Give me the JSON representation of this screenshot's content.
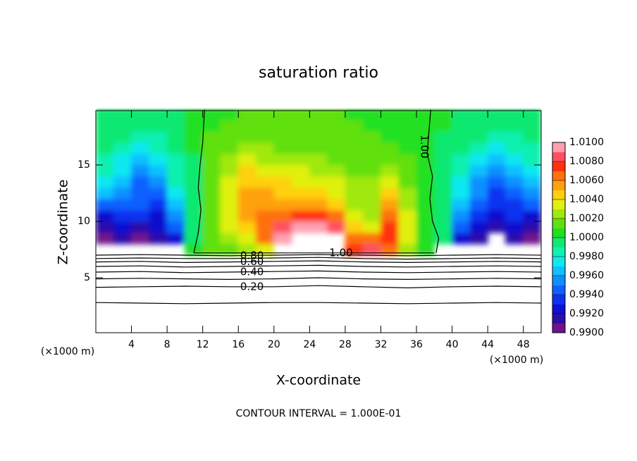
{
  "chart_data": {
    "type": "contour",
    "title": "saturation ratio",
    "xlabel": "X-coordinate",
    "ylabel": "Z-coordinate",
    "x_unit": "(×1000 m)",
    "y_unit": "(×1000 m)",
    "footer": "CONTOUR INTERVAL = 1.000E-01",
    "xlim": [
      0,
      50
    ],
    "ylim": [
      0,
      20
    ],
    "xticks": [
      4,
      8,
      12,
      16,
      20,
      24,
      28,
      32,
      36,
      40,
      44,
      48
    ],
    "yticks": [
      5,
      10,
      15
    ],
    "clim": [
      0.99,
      1.01
    ],
    "colorbar_ticks": [
      {
        "value": 0.99,
        "label": "0.9900"
      },
      {
        "value": 0.992,
        "label": "0.9920"
      },
      {
        "value": 0.994,
        "label": "0.9940"
      },
      {
        "value": 0.996,
        "label": "0.9960"
      },
      {
        "value": 0.998,
        "label": "0.9980"
      },
      {
        "value": 1.0,
        "label": "1.0000"
      },
      {
        "value": 1.002,
        "label": "1.0020"
      },
      {
        "value": 1.004,
        "label": "1.0040"
      },
      {
        "value": 1.006,
        "label": "1.0060"
      },
      {
        "value": 1.008,
        "label": "1.0080"
      },
      {
        "value": 1.01,
        "label": "1.0100"
      }
    ],
    "colors": [
      "#70128c",
      "#2a0fa8",
      "#1010d0",
      "#1030f0",
      "#1060ff",
      "#1090ff",
      "#10c0ff",
      "#10e8f0",
      "#10f0b0",
      "#10e870",
      "#20e020",
      "#60e010",
      "#a0e810",
      "#e0f010",
      "#ffd010",
      "#ffa010",
      "#ff7010",
      "#ff3010",
      "#ff5060",
      "#ffa0b0"
    ],
    "x": [
      1,
      3,
      5,
      7,
      9,
      11,
      13,
      15,
      17,
      19,
      21,
      23,
      25,
      27,
      29,
      31,
      33,
      35,
      37,
      39,
      41,
      43,
      45,
      47,
      49
    ],
    "y": [
      7.5,
      8.5,
      9.5,
      10.5,
      11.5,
      12.5,
      13.5,
      14.5,
      15.5,
      16.5,
      17.5,
      18.5,
      19.5
    ],
    "z": [
      [
        null,
        null,
        null,
        null,
        null,
        1.0005,
        1.0015,
        1.0015,
        1.0025,
        1.0035,
        null,
        null,
        null,
        null,
        1.0075,
        1.0085,
        1.0065,
        1.0025,
        1.0005,
        null,
        null,
        null,
        null,
        null,
        null
      ],
      [
        0.9905,
        0.9915,
        0.9905,
        0.9915,
        0.9925,
        0.9995,
        1.0015,
        1.0025,
        1.0035,
        1.0065,
        1.0095,
        null,
        null,
        null,
        1.0065,
        1.0065,
        1.0075,
        1.0035,
        1.0005,
        0.9995,
        0.9925,
        0.9915,
        null,
        0.9915,
        0.9905
      ],
      [
        0.9915,
        0.9925,
        0.9915,
        0.9925,
        0.9945,
        0.9995,
        1.0015,
        1.0035,
        1.0045,
        1.0065,
        1.0085,
        1.0095,
        1.0095,
        1.0085,
        1.0045,
        1.0035,
        1.0075,
        1.0035,
        1.0005,
        0.9995,
        0.9945,
        0.9925,
        0.9915,
        0.9925,
        0.9915
      ],
      [
        0.9925,
        0.9935,
        0.9935,
        0.9925,
        0.9955,
        0.9995,
        1.0015,
        1.0035,
        1.0055,
        1.0065,
        1.0065,
        1.0075,
        1.0075,
        1.0065,
        1.0035,
        1.0025,
        1.0065,
        1.0035,
        1.0005,
        0.9995,
        0.9955,
        0.9935,
        0.9925,
        0.9935,
        0.9925
      ],
      [
        0.9945,
        0.9945,
        0.9945,
        0.9935,
        0.9965,
        0.9995,
        1.0015,
        1.0035,
        1.0055,
        1.0055,
        1.0055,
        1.0055,
        1.0055,
        1.0045,
        1.0025,
        1.0025,
        1.0055,
        1.0025,
        1.0005,
        0.9995,
        0.9965,
        0.9945,
        0.9935,
        0.9935,
        0.9945
      ],
      [
        0.9965,
        0.9955,
        0.9945,
        0.9945,
        0.9975,
        0.9995,
        1.0015,
        1.0035,
        1.0055,
        1.0055,
        1.0045,
        1.0045,
        1.0045,
        1.0035,
        1.0025,
        1.0025,
        1.0045,
        1.0025,
        1.0005,
        0.9995,
        0.9975,
        0.9955,
        0.9935,
        0.9945,
        0.9955
      ],
      [
        0.9975,
        0.9965,
        0.9945,
        0.9955,
        0.9985,
        0.9995,
        1.0015,
        1.0035,
        1.0045,
        1.0045,
        1.0045,
        1.0035,
        1.0035,
        1.0035,
        1.0025,
        1.0025,
        1.0035,
        1.0015,
        1.0005,
        0.9995,
        0.9975,
        0.9955,
        0.9945,
        0.9955,
        0.9965
      ],
      [
        0.9985,
        0.9975,
        0.9955,
        0.9965,
        0.9985,
        0.9995,
        1.0015,
        1.0025,
        1.0045,
        1.0035,
        1.0035,
        1.0035,
        1.0025,
        1.0025,
        1.0015,
        1.0015,
        1.0025,
        1.0015,
        1.0005,
        0.9995,
        0.9985,
        0.9965,
        0.9955,
        0.9965,
        0.9975
      ],
      [
        0.9985,
        0.9975,
        0.9965,
        0.9975,
        0.9985,
        0.9995,
        1.0015,
        1.0025,
        1.0035,
        1.0025,
        1.0025,
        1.0025,
        1.0025,
        1.0015,
        1.0015,
        1.0015,
        1.0015,
        1.0015,
        1.0005,
        0.9995,
        0.9985,
        0.9975,
        0.9965,
        0.9975,
        0.9985
      ],
      [
        0.9995,
        0.9985,
        0.9975,
        0.9985,
        0.9995,
        1.0005,
        1.0015,
        1.0015,
        1.0025,
        1.0025,
        1.0015,
        1.0015,
        1.0015,
        1.0015,
        1.0015,
        1.0015,
        1.0015,
        1.0005,
        1.0005,
        0.9995,
        0.9995,
        0.9985,
        0.9975,
        0.9985,
        0.9985
      ],
      [
        0.9995,
        0.9995,
        0.9985,
        0.9985,
        0.9995,
        1.0005,
        1.0015,
        1.0015,
        1.0015,
        1.0015,
        1.0015,
        1.0015,
        1.0015,
        1.0015,
        1.0015,
        1.0015,
        1.0005,
        1.0005,
        1.0005,
        0.9995,
        0.9995,
        0.9995,
        0.9985,
        0.9985,
        0.9995
      ],
      [
        0.9995,
        0.9995,
        0.9995,
        0.9995,
        0.9995,
        1.0005,
        1.0005,
        1.0015,
        1.0015,
        1.0015,
        1.0015,
        1.0015,
        1.0015,
        1.0015,
        1.0015,
        1.0005,
        1.0005,
        1.0005,
        1.0005,
        1.0005,
        0.9995,
        0.9995,
        0.9995,
        0.9995,
        0.9995
      ],
      [
        0.9995,
        0.9995,
        0.9995,
        0.9995,
        0.9995,
        1.0005,
        1.0005,
        1.0005,
        1.0015,
        1.0015,
        1.0015,
        1.0015,
        1.0015,
        1.0015,
        1.0005,
        1.0005,
        1.0005,
        1.0005,
        1.0005,
        1.0005,
        0.9995,
        0.9995,
        0.9995,
        0.9995,
        0.9995
      ]
    ],
    "contours": [
      {
        "x": [
          0,
          5,
          10,
          15,
          20,
          25,
          30,
          35,
          40,
          45,
          50
        ],
        "y": [
          2.8,
          2.75,
          2.7,
          2.75,
          2.8,
          2.8,
          2.75,
          2.7,
          2.75,
          2.8,
          2.75
        ]
      },
      {
        "label": "0.20",
        "x": [
          0,
          5,
          10,
          15,
          20,
          25,
          30,
          35,
          40,
          45,
          50
        ],
        "y": [
          4.15,
          4.2,
          4.25,
          4.2,
          4.2,
          4.3,
          4.2,
          4.1,
          4.2,
          4.25,
          4.2
        ]
      },
      {
        "x": [
          0,
          5,
          10,
          15,
          20,
          25,
          30,
          35,
          40,
          45,
          50
        ],
        "y": [
          4.9,
          4.95,
          4.9,
          4.85,
          4.9,
          5.0,
          4.9,
          4.85,
          4.9,
          4.95,
          4.9
        ]
      },
      {
        "label": "0.40",
        "x": [
          0,
          5,
          10,
          15,
          20,
          25,
          30,
          35,
          40,
          45,
          50
        ],
        "y": [
          5.5,
          5.55,
          5.45,
          5.5,
          5.55,
          5.6,
          5.5,
          5.45,
          5.5,
          5.55,
          5.5
        ]
      },
      {
        "x": [
          0,
          5,
          10,
          15,
          20,
          25,
          30,
          35,
          40,
          45,
          50
        ],
        "y": [
          6.0,
          6.05,
          5.95,
          6.0,
          6.05,
          6.1,
          6.0,
          5.95,
          6.0,
          6.05,
          6.0
        ]
      },
      {
        "label": "0.60",
        "x": [
          0,
          5,
          10,
          15,
          20,
          25,
          30,
          35,
          40,
          45,
          50
        ],
        "y": [
          6.4,
          6.45,
          6.35,
          6.4,
          6.45,
          6.5,
          6.4,
          6.35,
          6.4,
          6.45,
          6.4
        ]
      },
      {
        "x": [
          0,
          5,
          10,
          15,
          20,
          25,
          30,
          35,
          40,
          45,
          50
        ],
        "y": [
          6.7,
          6.75,
          6.7,
          6.7,
          6.75,
          6.8,
          6.7,
          6.65,
          6.7,
          6.75,
          6.7
        ]
      },
      {
        "label": "0.80",
        "x": [
          0,
          5,
          10,
          15,
          20,
          25,
          30,
          35,
          40,
          45,
          50
        ],
        "y": [
          7.0,
          7.05,
          7.0,
          6.95,
          7.0,
          7.05,
          7.0,
          6.95,
          7.0,
          7.05,
          7.0
        ]
      },
      {
        "label": "1.00",
        "x": [
          11,
          15,
          20,
          25,
          30,
          35,
          38
        ],
        "y": [
          7.2,
          7.2,
          7.2,
          7.2,
          7.2,
          7.2,
          7.2
        ]
      },
      {
        "x": [
          11,
          11.5,
          11.8,
          11.5,
          11.7,
          12,
          12.2
        ],
        "y": [
          7.2,
          9,
          11,
          13,
          15,
          17,
          19.9
        ]
      },
      {
        "label": "1.00",
        "x": [
          38.2,
          38.5,
          37.8,
          37.5,
          37.8,
          37.2,
          37.6
        ],
        "y": [
          7.2,
          8.5,
          10,
          12,
          14,
          16,
          19.9
        ]
      }
    ]
  }
}
